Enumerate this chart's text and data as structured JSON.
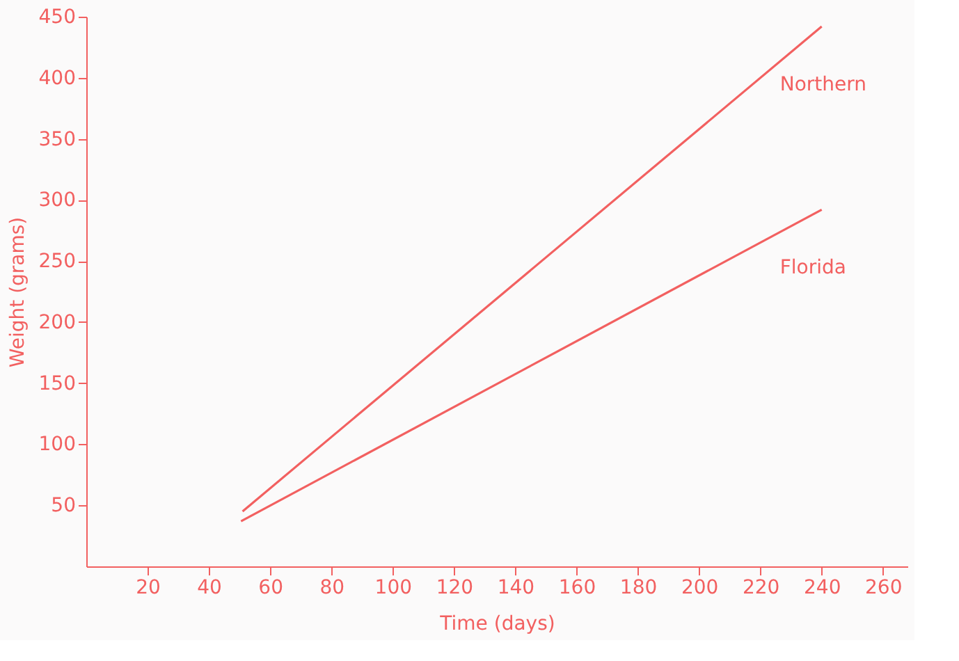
{
  "chart_data": {
    "type": "line",
    "xlabel": "Time  (days)",
    "ylabel": "Weight (grams)",
    "series": [
      {
        "name": "Northern",
        "color": "#f26060",
        "x": [
          51,
          240
        ],
        "values": [
          45,
          442
        ]
      },
      {
        "name": "Florida",
        "color": "#f26060",
        "x": [
          50.5,
          240
        ],
        "values": [
          37,
          292
        ]
      }
    ],
    "xlim": [
      0,
      268
    ],
    "xticks": [
      20,
      40,
      60,
      80,
      100,
      120,
      140,
      160,
      180,
      200,
      220,
      240,
      260
    ],
    "ylim": [
      0,
      450
    ],
    "yticks": [
      50,
      100,
      150,
      200,
      250,
      300,
      350,
      400,
      450
    ],
    "grid": false,
    "legend": false
  }
}
